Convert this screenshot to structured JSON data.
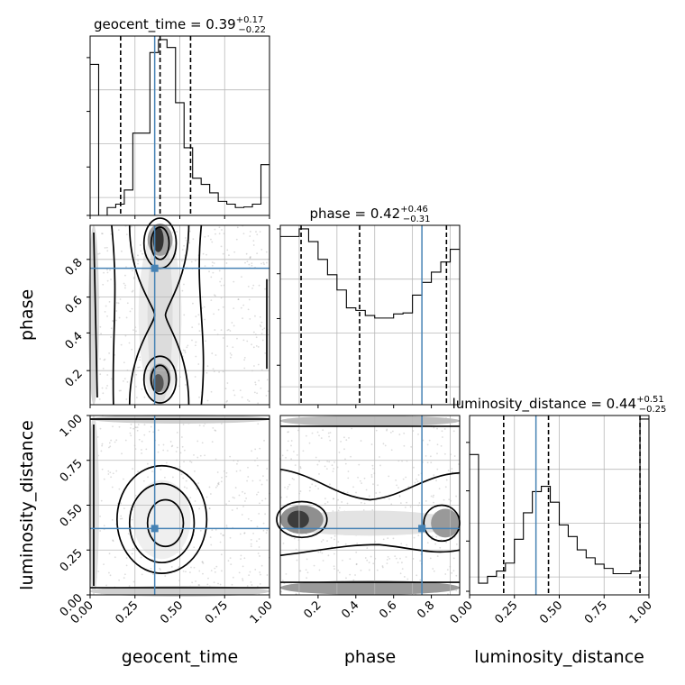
{
  "chart_data": {
    "type": "corner",
    "parameters": [
      "geocent_time",
      "phase",
      "luminosity_distance"
    ],
    "truths": {
      "geocent_time": 0.36,
      "phase": 0.75,
      "luminosity_distance": 0.37
    },
    "truth_color": "#4682b4",
    "grid": true,
    "diagonal_titles": [
      {
        "param": "geocent_time",
        "prefix": "geocent_time = ",
        "value": "0.39",
        "plus": "+0.17",
        "minus": "−0.22"
      },
      {
        "param": "phase",
        "prefix": "phase = ",
        "value": "0.42",
        "plus": "+0.46",
        "minus": "−0.31"
      },
      {
        "param": "luminosity_distance",
        "prefix": "luminosity_distance = ",
        "value": "0.44",
        "plus": "+0.51",
        "minus": "−0.25"
      }
    ],
    "histograms": [
      {
        "param": "geocent_time",
        "range": [
          0,
          1
        ],
        "quantile_lines": [
          0.17,
          0.39,
          0.56
        ],
        "counts": [
          268,
          0,
          14,
          20,
          45,
          146,
          146,
          289,
          312,
          298,
          200,
          120,
          66,
          55,
          40,
          25,
          20,
          14,
          15,
          20,
          90
        ]
      },
      {
        "param": "phase",
        "range": [
          0,
          0.95
        ],
        "quantile_lines": [
          0.11,
          0.42,
          0.88
        ],
        "counts": [
          330,
          330,
          345,
          320,
          285,
          255,
          225,
          190,
          185,
          175,
          170,
          170,
          178,
          180,
          215,
          240,
          260,
          280,
          305
        ]
      },
      {
        "param": "luminosity_distance",
        "range": [
          0,
          1
        ],
        "quantile_lines": [
          0.19,
          0.44,
          0.95
        ],
        "counts": [
          265,
          22,
          35,
          45,
          60,
          105,
          155,
          195,
          205,
          175,
          132,
          110,
          85,
          70,
          58,
          50,
          40,
          40,
          45,
          332
        ]
      }
    ],
    "panels_2d": [
      {
        "x": "geocent_time",
        "y": "phase",
        "x_range": [
          0,
          1
        ],
        "y_range": [
          0.02,
          0.98
        ]
      },
      {
        "x": "geocent_time",
        "y": "luminosity_distance",
        "x_range": [
          0,
          1
        ],
        "y_range": [
          0,
          1
        ]
      },
      {
        "x": "phase",
        "y": "luminosity_distance",
        "x_range": [
          0,
          0.95
        ],
        "y_range": [
          0,
          1
        ]
      }
    ],
    "axis_labels": {
      "geocent_time": "geocent_time",
      "phase": "phase",
      "luminosity_distance": "luminosity_distance"
    },
    "ticks": {
      "geocent_time": [
        "0.00",
        "0.25",
        "0.50",
        "0.75",
        "1.00"
      ],
      "phase_x": [
        "0.2",
        "0.4",
        "0.6",
        "0.8"
      ],
      "phase_y": [
        "0.2",
        "0.4",
        "0.6",
        "0.8"
      ],
      "luminosity_distance": [
        "0.00",
        "0.25",
        "0.50",
        "0.75",
        "1.00"
      ]
    }
  }
}
